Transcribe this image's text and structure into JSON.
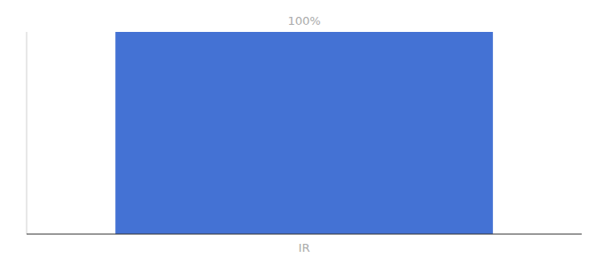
{
  "chart_data": {
    "type": "bar",
    "categories": [
      "IR"
    ],
    "values": [
      100
    ],
    "value_labels": [
      "100%"
    ],
    "color": "#4472d4",
    "ylim": [
      0,
      100
    ],
    "data_labels": true,
    "tick_labels": "x",
    "grid": false
  }
}
